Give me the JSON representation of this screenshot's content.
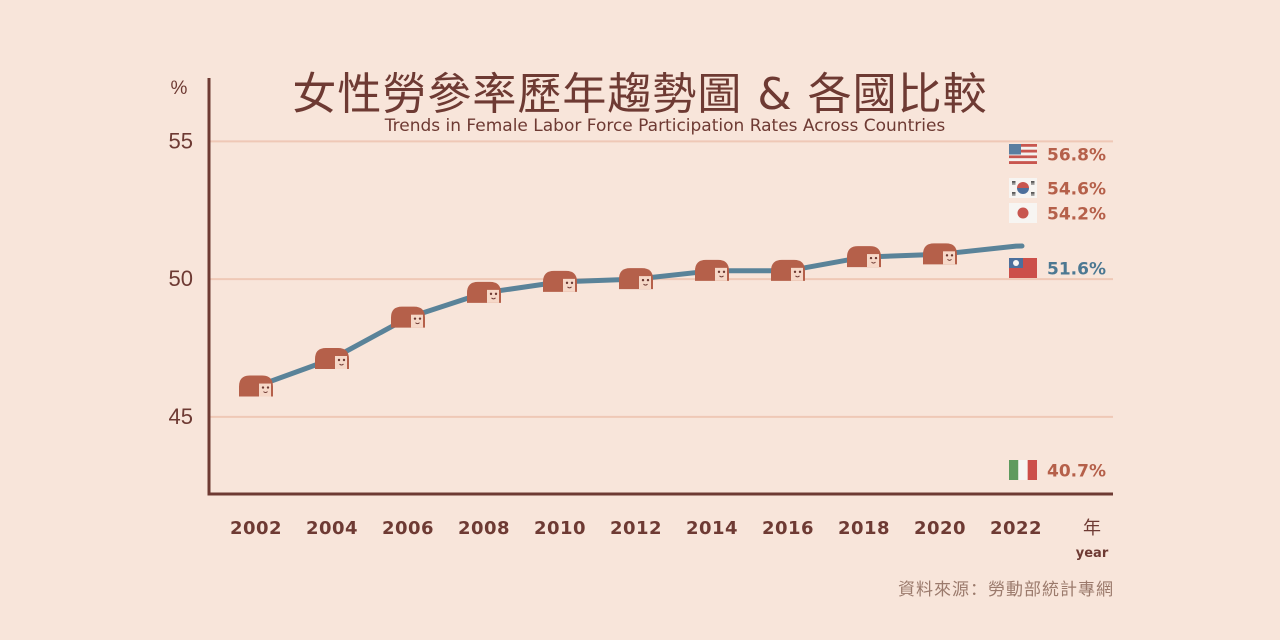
{
  "colors": {
    "background": "#f8e5da",
    "axis": "#6e3a33",
    "grid": "#efc8b6",
    "line": "#5a8399",
    "hair": "#b5604a",
    "face": "#f6d8c8",
    "label_red": "#b5604a",
    "label_blue": "#4c7892"
  },
  "title": "女性勞參率歷年趨勢圖 & 各國比較",
  "subtitle": "Trends in Female Labor Force Participation Rates Across Countries",
  "source": "資料來源：勞動部統計專網",
  "chart_data": {
    "type": "line",
    "title": "女性勞參率歷年趨勢圖 & 各國比較",
    "subtitle": "Trends in Female Labor Force Participation Rates Across Countries",
    "ylabel": "%",
    "xlabel": "年",
    "xlabel_en": "year",
    "ylim": [
      42.2,
      57.3
    ],
    "yticks": [
      45,
      50,
      55
    ],
    "xticks": [
      2002,
      2004,
      2006,
      2008,
      2010,
      2012,
      2014,
      2016,
      2018,
      2020,
      2022
    ],
    "grid": true,
    "series": [
      {
        "x": [
          2002,
          2004,
          2006,
          2008,
          2010,
          2012,
          2014,
          2016,
          2018,
          2020,
          2022
        ],
        "y": [
          46.1,
          47.1,
          48.6,
          49.5,
          49.9,
          50.0,
          50.3,
          50.3,
          50.8,
          50.9,
          51.2
        ]
      }
    ],
    "comparisons": [
      {
        "flag": "usa-flag-icon",
        "value": 56.8,
        "label": "56.8%",
        "color": "#b5604a"
      },
      {
        "flag": "korea-flag-icon",
        "value": 54.6,
        "label": "54.6%",
        "color": "#b5604a"
      },
      {
        "flag": "japan-flag-icon",
        "value": 54.2,
        "label": "54.2%",
        "color": "#b5604a"
      },
      {
        "flag": "taiwan-flag-icon",
        "value": 51.6,
        "label": "51.6%",
        "color": "#4c7892"
      },
      {
        "flag": "italy-flag-icon",
        "value": 40.7,
        "label": "40.7%",
        "color": "#b5604a"
      }
    ]
  }
}
